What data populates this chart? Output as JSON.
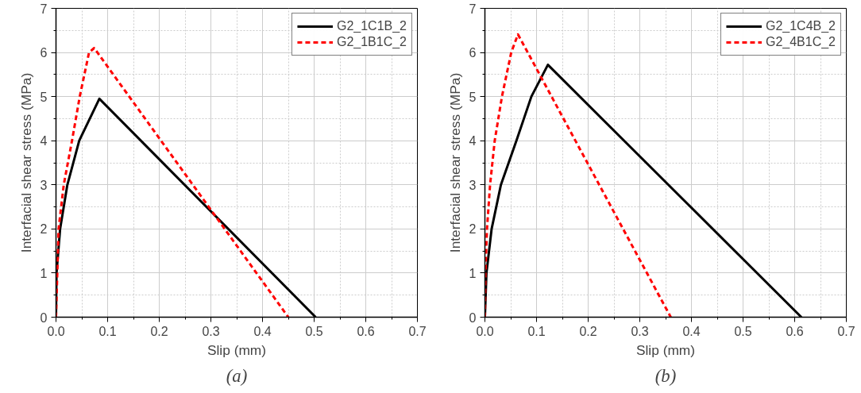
{
  "chart_data": [
    {
      "type": "line",
      "xlabel": "Slip (mm)",
      "ylabel": "Interfacial shear stress (MPa)",
      "xlim": [
        0,
        0.7
      ],
      "ylim": [
        0,
        7
      ],
      "xticks": [
        {
          "value": 0,
          "label": "0.0"
        },
        0.1,
        0.2,
        0.3,
        0.4,
        0.5,
        0.6,
        0.7
      ],
      "yticks": [
        0,
        1,
        2,
        3,
        4,
        5,
        6,
        7
      ],
      "grid": true,
      "legend": "top right",
      "annotations": [
        "(a)"
      ],
      "series": [
        {
          "name": "G2_1C1B_2",
          "color": "#000000",
          "line_style": "solid",
          "x": [
            0,
            0.001,
            0.008,
            0.022,
            0.045,
            0.084,
            0.503
          ],
          "values": [
            0,
            1,
            2,
            3,
            4,
            4.95,
            0
          ]
        },
        {
          "name": "G2_1B1C_2",
          "color": "#ff0000",
          "line_style": "dashed",
          "x": [
            0,
            0.005,
            0.015,
            0.031,
            0.046,
            0.064,
            0.074,
            0.45
          ],
          "values": [
            0,
            2,
            3,
            4,
            5,
            6,
            6.1,
            0
          ]
        }
      ]
    },
    {
      "type": "line",
      "xlabel": "Slip (mm)",
      "ylabel": "Interfacial shear stress (MPa)",
      "xlim": [
        0,
        0.7
      ],
      "ylim": [
        0,
        7
      ],
      "xticks": [
        {
          "value": 0,
          "label": "0.0"
        },
        0.1,
        0.2,
        0.3,
        0.4,
        0.5,
        0.6,
        0.7
      ],
      "yticks": [
        0,
        1,
        2,
        3,
        4,
        5,
        6,
        7
      ],
      "grid": true,
      "legend": "top right",
      "annotations": [
        "(b)"
      ],
      "series": [
        {
          "name": "G2_1C4B_2",
          "color": "#000000",
          "line_style": "solid",
          "x": [
            0,
            0.003,
            0.013,
            0.031,
            0.061,
            0.09,
            0.122,
            0.613
          ],
          "values": [
            0,
            1,
            2,
            3,
            4,
            5,
            5.72,
            0
          ]
        },
        {
          "name": "G2_4B1C_2",
          "color": "#ff0000",
          "line_style": "dashed",
          "x": [
            0,
            0.001,
            0.004,
            0.01,
            0.019,
            0.033,
            0.051,
            0.064,
            0.36
          ],
          "values": [
            0,
            1,
            2,
            3,
            4,
            5,
            6,
            6.41,
            0
          ]
        }
      ]
    }
  ]
}
